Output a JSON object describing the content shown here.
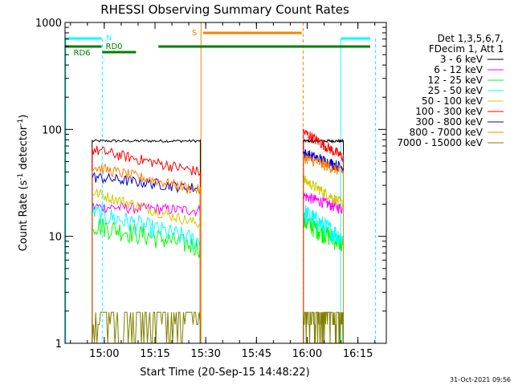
{
  "chart_data": {
    "type": "line",
    "title": "RHESSI Observing Summary Count Rates",
    "xlabel": "Start Time (20-Sep-15 14:48:22)",
    "ylabel_main": "Count Rate (s",
    "ylabel_sup1": "-1",
    "ylabel_mid": " detector",
    "ylabel_sup2": "-1",
    "ylabel_end": ")",
    "yscale": "log",
    "ylim": [
      1,
      1000
    ],
    "xlim_minutes": [
      0,
      95
    ],
    "xticks": [
      {
        "label": "15:00",
        "min": 11.6
      },
      {
        "label": "15:15",
        "min": 26.6
      },
      {
        "label": "15:30",
        "min": 41.6
      },
      {
        "label": "15:45",
        "min": 56.6
      },
      {
        "label": "16:00",
        "min": 71.6
      },
      {
        "label": "16:15",
        "min": 86.6
      }
    ],
    "yticks": [
      {
        "label": "1",
        "value": 1
      },
      {
        "label": "10",
        "value": 10
      },
      {
        "label": "100",
        "value": 100
      },
      {
        "label": "1000",
        "value": 1000
      }
    ],
    "legend": {
      "position": "right",
      "header1": "Det 1,3,5,6,7,",
      "header2": "FDecim 1, Att 1"
    },
    "series": [
      {
        "name": "3 - 6 keV",
        "color": "#000000",
        "seg1": [
          78,
          78
        ],
        "seg2": [
          78,
          78
        ]
      },
      {
        "name": "6 - 12 keV",
        "color": "#ff00ff",
        "seg1": [
          19,
          17.5
        ],
        "seg2": [
          24,
          18
        ]
      },
      {
        "name": "12 - 25 keV",
        "color": "#00ff00",
        "seg1": [
          13,
          8
        ],
        "seg2": [
          14,
          8.5
        ]
      },
      {
        "name": "25 - 50 keV",
        "color": "#00ffff",
        "seg1": [
          17,
          9
        ],
        "seg2": [
          17,
          9.5
        ]
      },
      {
        "name": "50 - 100 keV",
        "color": "#cccc00",
        "seg1": [
          26,
          13
        ],
        "seg2": [
          34,
          20
        ]
      },
      {
        "name": "100 - 300 keV",
        "color": "#ff0000",
        "seg1": [
          65,
          40
        ],
        "seg2": [
          95,
          55
        ]
      },
      {
        "name": "300 - 800 keV",
        "color": "#0000cc",
        "seg1": [
          36,
          28
        ],
        "seg2": [
          60,
          44
        ]
      },
      {
        "name": "800 - 7000 keV",
        "color": "#ff8000",
        "seg1": [
          45,
          27
        ],
        "seg2": [
          55,
          40
        ]
      },
      {
        "name": "7000 - 15000 keV",
        "color": "#808000",
        "seg1": [
          1.7,
          1.6
        ],
        "seg2": [
          1.7,
          1.6
        ]
      }
    ],
    "segments_minutes": [
      [
        8.0,
        40.0
      ],
      [
        70.5,
        82.3
      ]
    ],
    "annotations": {
      "saa_label": "S",
      "night_label": "N",
      "rd0_label": "RD0",
      "rd6_label": "RD6",
      "saa_color": "#ff8000",
      "night_color": "#00ffff",
      "decim_color": "#008000"
    },
    "timestamp": "31-Oct-2021 09:56"
  }
}
